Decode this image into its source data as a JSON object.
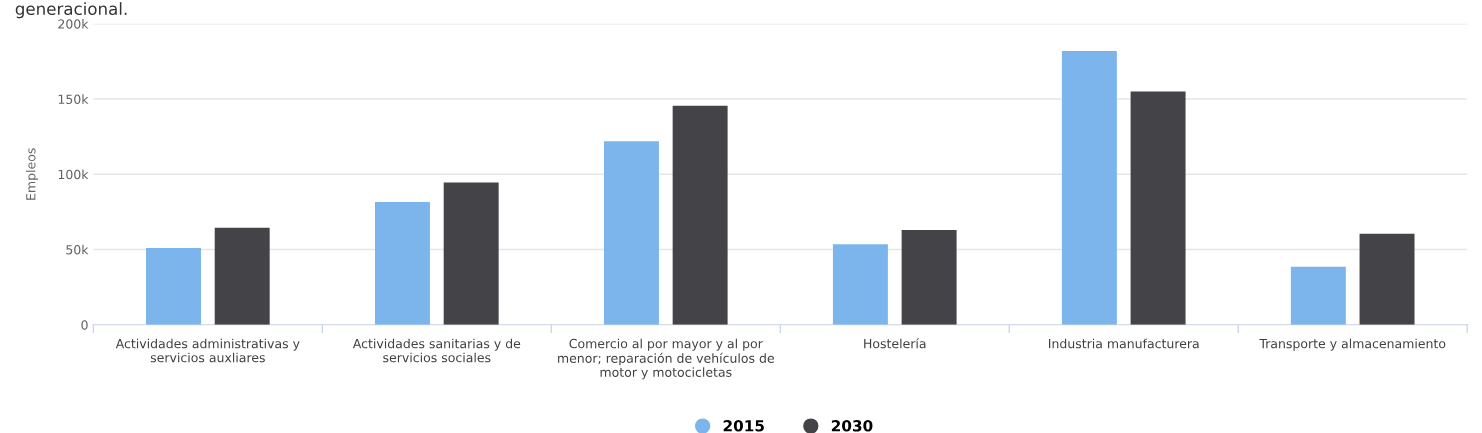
{
  "chart_data": {
    "type": "bar",
    "ylabel": "Empleos",
    "categories": [
      "Actividades administrativas y servicios auxliares",
      "Actividades sanitarias y de servicios sociales",
      "Comercio al por mayor y al por menor; reparación de vehículos de motor y motocicletas",
      "Hostelería",
      "Industria manufacturera",
      "Transporte y almacenamiento"
    ],
    "series": [
      {
        "name": "2015",
        "color": "#7cb5ec",
        "values": [
          51000,
          81500,
          122000,
          53500,
          182000,
          38500
        ]
      },
      {
        "name": "2030",
        "color": "#434348",
        "values": [
          64500,
          94500,
          145500,
          63000,
          155000,
          60500
        ]
      }
    ],
    "ylim": [
      0,
      200000
    ],
    "yticks": [
      {
        "value": 0,
        "label": "0"
      },
      {
        "value": 50000,
        "label": "50k"
      },
      {
        "value": 100000,
        "label": "100k"
      },
      {
        "value": 150000,
        "label": "150k"
      },
      {
        "value": 200000,
        "label": "200k"
      }
    ],
    "grid": "y",
    "legend": "bottom",
    "annotations": [
      "generacional."
    ]
  }
}
